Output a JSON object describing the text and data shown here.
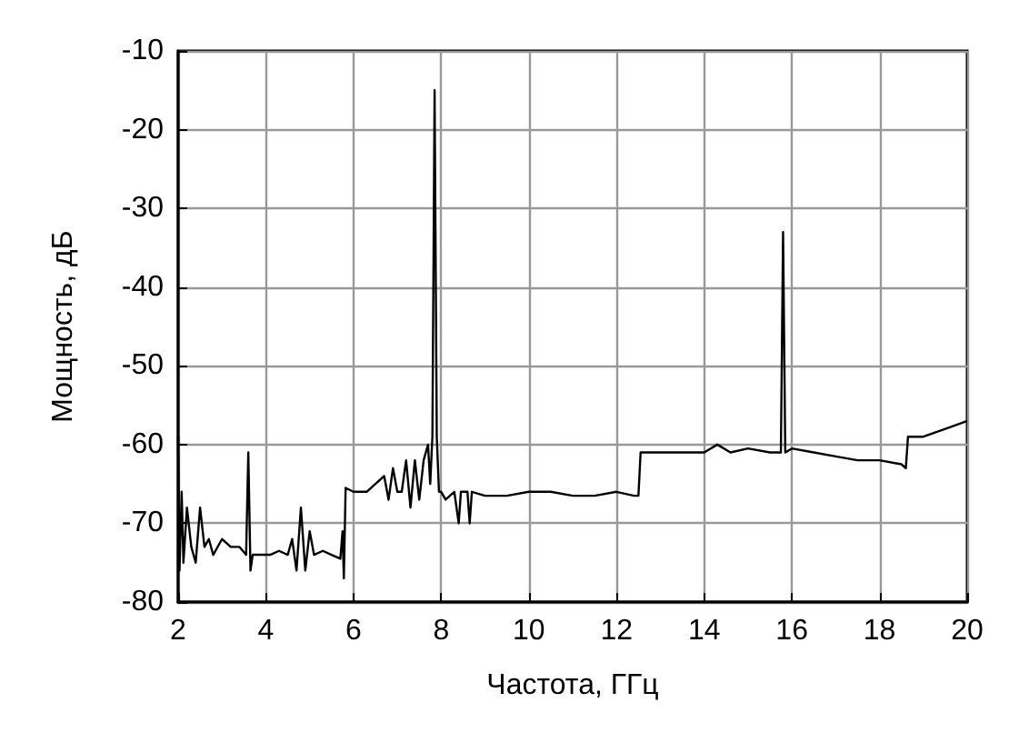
{
  "chart_data": {
    "type": "line",
    "xlabel": "Частота, ГГц",
    "ylabel": "Мощность, дБ",
    "xlim": [
      2,
      20
    ],
    "xticks": [
      2,
      4,
      6,
      8,
      10,
      12,
      14,
      16,
      18,
      20
    ],
    "ylim": [
      -80,
      -10
    ],
    "yticks": [
      -80,
      -70,
      -60,
      -50,
      -40,
      -30,
      -20,
      -10
    ],
    "grid": true,
    "marker": "none",
    "line_style": "solid",
    "series": [
      {
        "color": "#000000",
        "x": [
          2.0,
          2.03,
          2.08,
          2.12,
          2.2,
          2.3,
          2.4,
          2.5,
          2.6,
          2.7,
          2.8,
          3.0,
          3.2,
          3.4,
          3.55,
          3.6,
          3.65,
          3.7,
          3.9,
          4.1,
          4.3,
          4.5,
          4.6,
          4.7,
          4.8,
          4.9,
          5.0,
          5.1,
          5.3,
          5.5,
          5.7,
          5.75,
          5.78,
          5.82,
          6.0,
          6.3,
          6.5,
          6.7,
          6.8,
          6.9,
          7.0,
          7.1,
          7.2,
          7.3,
          7.4,
          7.5,
          7.6,
          7.7,
          7.75,
          7.8,
          7.85,
          7.9,
          7.95,
          8.0,
          8.1,
          8.3,
          8.4,
          8.45,
          8.6,
          8.65,
          8.7,
          9.0,
          9.5,
          10,
          10.5,
          11,
          11.5,
          12,
          12.4,
          12.5,
          12.55,
          13,
          13.5,
          14,
          14.3,
          14.6,
          15,
          15.5,
          15.75,
          15.8,
          15.85,
          16,
          16.5,
          17,
          17.5,
          18,
          18.5,
          18.6,
          18.65,
          19,
          19.5,
          20
        ],
        "values": [
          -59,
          -76,
          -66,
          -75,
          -68,
          -73,
          -75,
          -68,
          -73,
          -72,
          -74,
          -72,
          -73,
          -73,
          -74,
          -61,
          -76,
          -74,
          -74,
          -74,
          -73.5,
          -74,
          -72,
          -76,
          -68,
          -76,
          -71,
          -74,
          -73.5,
          -74,
          -74.5,
          -71,
          -77,
          -65.5,
          -66,
          -66,
          -65,
          -64,
          -67,
          -63,
          -66,
          -66,
          -62,
          -68,
          -62,
          -67,
          -62,
          -60,
          -65,
          -59,
          -15,
          -59,
          -66,
          -66,
          -67,
          -66,
          -70,
          -66,
          -66,
          -70,
          -66,
          -66.5,
          -66.5,
          -66,
          -66,
          -66.5,
          -66.5,
          -66,
          -66.5,
          -66.5,
          -61,
          -61,
          -61,
          -61,
          -60,
          -61,
          -60.5,
          -61,
          -61,
          -33,
          -61,
          -60.5,
          -61,
          -61.5,
          -62,
          -62,
          -62.5,
          -63,
          -59,
          -59,
          -58,
          -57
        ]
      }
    ]
  }
}
